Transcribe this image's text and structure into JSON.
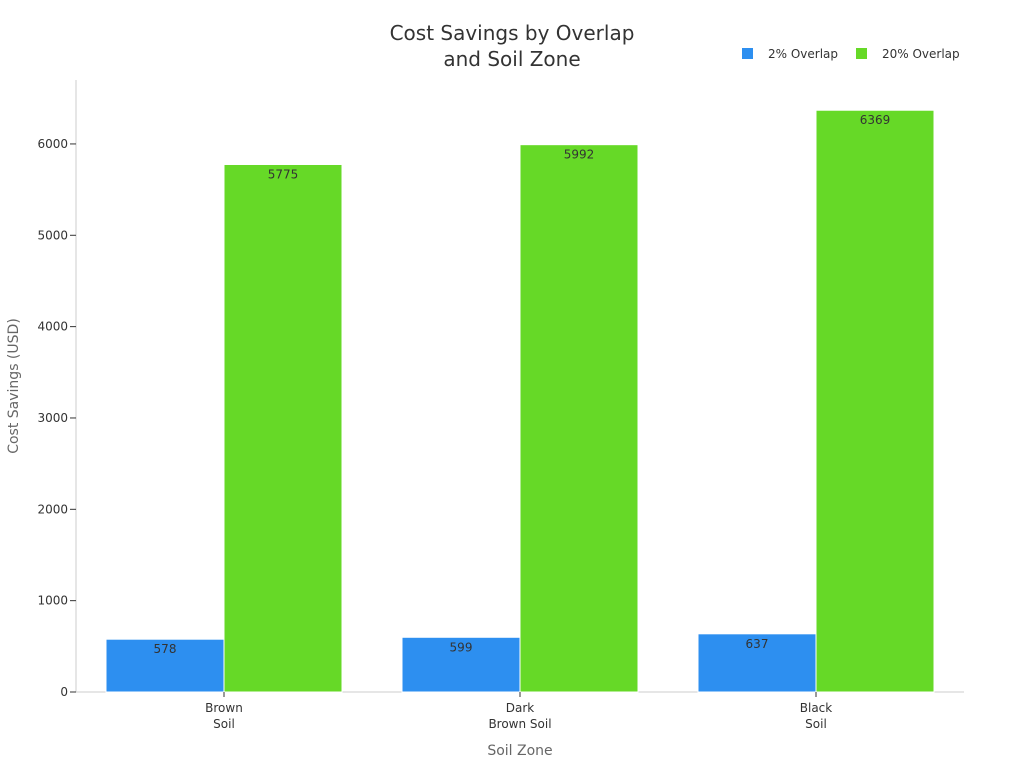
{
  "chart_data": {
    "type": "bar",
    "title": [
      "Cost Savings by Overlap",
      "and Soil Zone"
    ],
    "xlabel": "Soil Zone",
    "ylabel": "Cost Savings (USD)",
    "categories": [
      [
        "Brown",
        "Soil"
      ],
      [
        "Dark",
        "Brown Soil"
      ],
      [
        "Black",
        "Soil"
      ]
    ],
    "series": [
      {
        "name": "2% Overlap",
        "values": [
          578,
          599,
          637
        ],
        "color": "#2d8ff0"
      },
      {
        "name": "20% Overlap",
        "values": [
          5775,
          5992,
          6369
        ],
        "color": "#66d927"
      }
    ],
    "ylim": [
      0,
      6700
    ],
    "yticks": [
      0,
      1000,
      2000,
      3000,
      4000,
      5000,
      6000
    ],
    "grid": false,
    "legend_position": "top-right"
  }
}
